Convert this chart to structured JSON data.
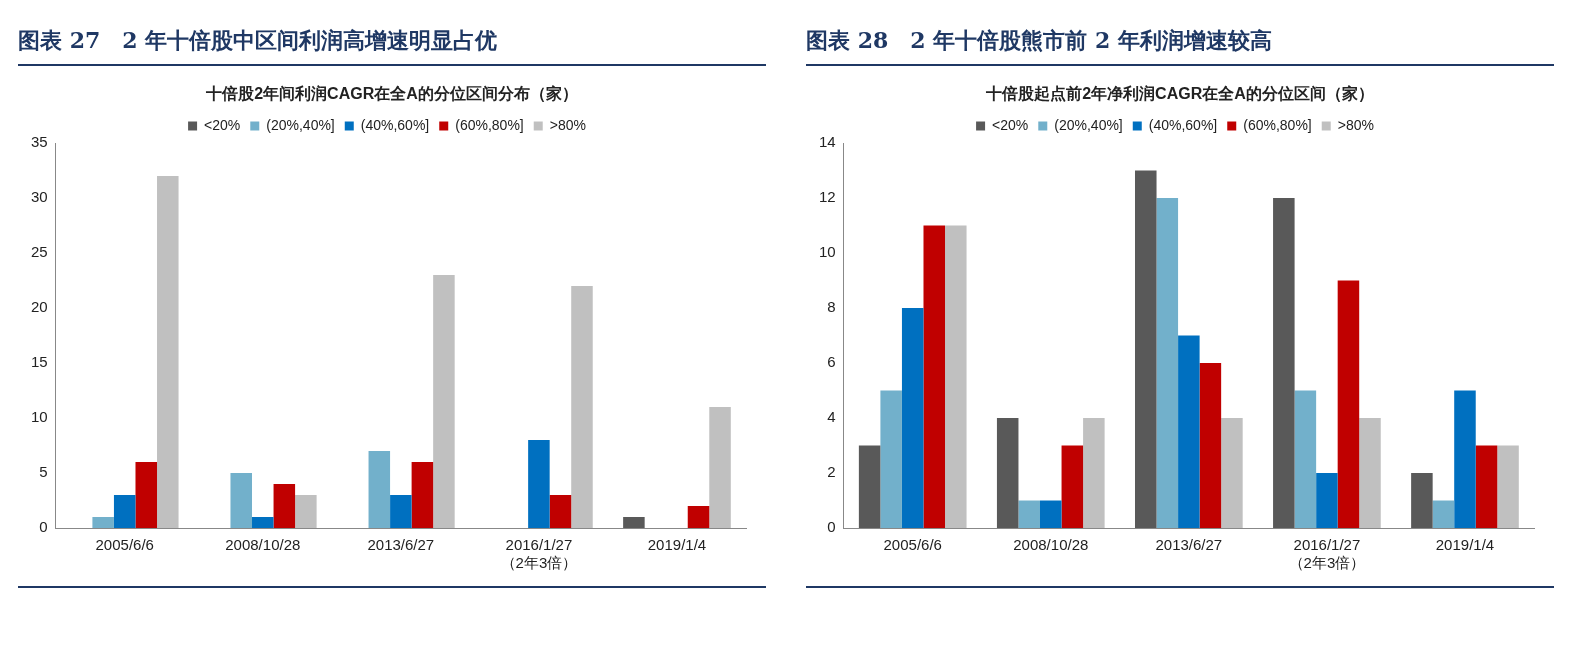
{
  "chart_data": [
    {
      "type": "bar",
      "title": "图表 27　2 年十倍股中区间利润高增速明显占优",
      "subtitle": "十倍股2年间利润CAGR在全A的分位区间分布（家）",
      "categories": [
        "2005/6/6",
        "2008/10/28",
        "2013/6/27",
        "2016/1/27\n（2年3倍）",
        "2019/1/4"
      ],
      "series": [
        {
          "name": "<20%",
          "color": "#595959",
          "values": [
            0,
            0,
            0,
            0,
            1
          ]
        },
        {
          "name": "(20%,40%]",
          "color": "#72b0cb",
          "values": [
            1,
            5,
            7,
            0,
            0
          ]
        },
        {
          "name": "(40%,60%]",
          "color": "#0070c0",
          "values": [
            3,
            1,
            3,
            8,
            0
          ]
        },
        {
          "name": "(60%,80%]",
          "color": "#c00000",
          "values": [
            6,
            4,
            6,
            3,
            2
          ]
        },
        {
          "name": ">80%",
          "color": "#c0c0c0",
          "values": [
            32,
            3,
            23,
            22,
            11
          ]
        }
      ],
      "ylim": [
        0,
        35
      ],
      "yticks": [
        0,
        5,
        10,
        15,
        20,
        25,
        30,
        35
      ],
      "grid": false,
      "legend": "top"
    },
    {
      "type": "bar",
      "title": "图表 28　2 年十倍股熊市前 2 年利润增速较高",
      "subtitle": "十倍股起点前2年净利润CAGR在全A的分位区间（家）",
      "categories": [
        "2005/6/6",
        "2008/10/28",
        "2013/6/27",
        "2016/1/27\n（2年3倍）",
        "2019/1/4"
      ],
      "series": [
        {
          "name": "<20%",
          "color": "#595959",
          "values": [
            3,
            4,
            13,
            12,
            2
          ]
        },
        {
          "name": "(20%,40%]",
          "color": "#72b0cb",
          "values": [
            5,
            1,
            12,
            5,
            1
          ]
        },
        {
          "name": "(40%,60%]",
          "color": "#0070c0",
          "values": [
            8,
            1,
            7,
            2,
            5
          ]
        },
        {
          "name": "(60%,80%]",
          "color": "#c00000",
          "values": [
            11,
            3,
            6,
            9,
            3
          ]
        },
        {
          "name": ">80%",
          "color": "#c0c0c0",
          "values": [
            11,
            4,
            4,
            4,
            3
          ]
        }
      ],
      "ylim": [
        0,
        14
      ],
      "yticks": [
        0,
        2,
        4,
        6,
        8,
        10,
        12,
        14
      ],
      "grid": false,
      "legend": "top"
    }
  ]
}
